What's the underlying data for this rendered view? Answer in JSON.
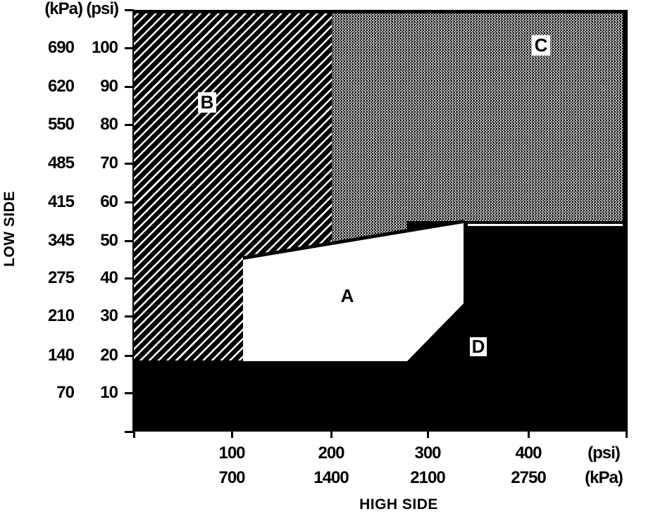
{
  "y_axis": {
    "title": "LOW SIDE",
    "unit_headers": {
      "kpa": "(kPa)",
      "psi": "(psi)"
    },
    "kpa_labels": [
      "690",
      "620",
      "550",
      "485",
      "415",
      "345",
      "275",
      "210",
      "140",
      "70"
    ],
    "psi_labels": [
      "100",
      "90",
      "80",
      "70",
      "60",
      "50",
      "40",
      "30",
      "20",
      "10"
    ]
  },
  "x_axis": {
    "title": "HIGH SIDE",
    "psi_labels": [
      "100",
      "200",
      "300",
      "400"
    ],
    "kpa_labels": [
      "700",
      "1400",
      "2100",
      "2750"
    ],
    "unit_psi": "(psi)",
    "unit_kpa": "(kPa)"
  },
  "regions": {
    "a": {
      "label": "A",
      "fill": "white"
    },
    "b": {
      "label": "B",
      "fill": "black-with-white-diagonal-hatch"
    },
    "c": {
      "label": "C",
      "fill": "gray-stipple-dither"
    },
    "d": {
      "label": "D",
      "fill": "solid-black"
    }
  },
  "colors": {
    "foreground": "#000000",
    "background": "#ffffff"
  },
  "chart_data": {
    "type": "area",
    "title": "",
    "xlabel": "HIGH SIDE",
    "ylabel": "LOW SIDE",
    "grid": false,
    "legend": false,
    "x_ticks": {
      "psi": [
        100,
        200,
        300,
        400
      ],
      "kPa": [
        700,
        1400,
        2100,
        2750
      ]
    },
    "y_ticks": {
      "psi": [
        100,
        90,
        80,
        70,
        60,
        50,
        40,
        30,
        20,
        10
      ],
      "kPa": [
        690,
        620,
        550,
        485,
        415,
        345,
        275,
        210,
        140,
        70
      ]
    },
    "xlim_psi": [
      0,
      500
    ],
    "ylim_psi": [
      0,
      110
    ],
    "regions": [
      {
        "label": "A",
        "fill": "white",
        "polygon_psi": [
          [
            110,
            45
          ],
          [
            335,
            55
          ],
          [
            335,
            33
          ],
          [
            280,
            18
          ],
          [
            110,
            18
          ]
        ]
      },
      {
        "label": "B",
        "fill": "diagonal-hatch",
        "polygon_psi": [
          [
            0,
            110
          ],
          [
            200,
            110
          ],
          [
            200,
            48
          ],
          [
            110,
            45
          ],
          [
            110,
            18
          ],
          [
            0,
            18
          ]
        ]
      },
      {
        "label": "C",
        "fill": "gray-stipple",
        "polygon_psi": [
          [
            200,
            110
          ],
          [
            500,
            110
          ],
          [
            500,
            55
          ],
          [
            335,
            55
          ],
          [
            200,
            48
          ]
        ]
      },
      {
        "label": "D",
        "fill": "solid-black",
        "polygons_psi": [
          [
            [
              0,
              0
            ],
            [
              500,
              0
            ],
            [
              500,
              18
            ],
            [
              0,
              18
            ]
          ],
          [
            [
              335,
              55
            ],
            [
              500,
              55
            ],
            [
              500,
              18
            ],
            [
              280,
              18
            ],
            [
              335,
              33
            ]
          ]
        ]
      }
    ]
  }
}
